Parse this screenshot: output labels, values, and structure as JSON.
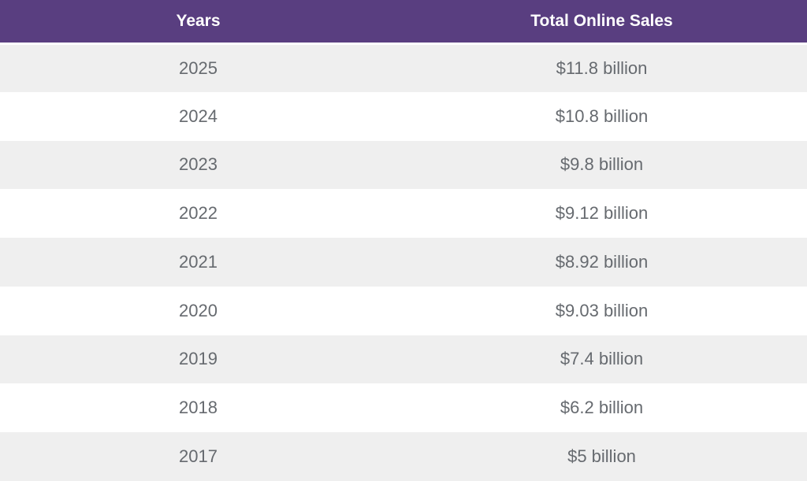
{
  "colors": {
    "header_bg": "#593e80",
    "header_text": "#ffffff",
    "row_alt_bg": "#efefef",
    "cell_text": "#666a6f"
  },
  "table": {
    "headers": [
      "Years",
      "Total Online Sales"
    ],
    "rows": [
      [
        "2025",
        "$11.8 billion"
      ],
      [
        "2024",
        "$10.8 billion"
      ],
      [
        "2023",
        "$9.8 billion"
      ],
      [
        "2022",
        "$9.12 billion"
      ],
      [
        "2021",
        "$8.92 billion"
      ],
      [
        "2020",
        "$9.03 billion"
      ],
      [
        "2019",
        "$7.4 billion"
      ],
      [
        "2018",
        "$6.2 billion"
      ],
      [
        "2017",
        "$5 billion"
      ]
    ]
  }
}
